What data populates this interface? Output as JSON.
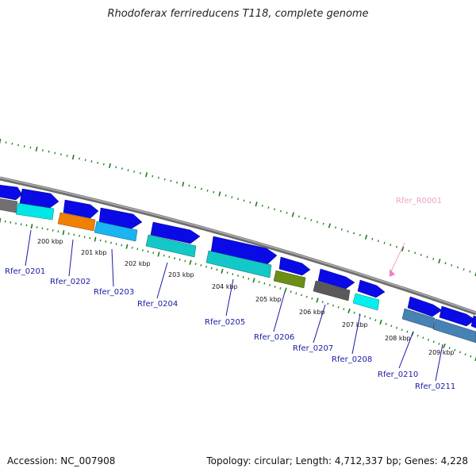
{
  "title": "Rhodoferax ferrireducens T118, complete genome",
  "footer": {
    "accession": "Accession: NC_007908",
    "summary": "Topology: circular; Length: 4,712,337 bp; Genes: 4,228"
  },
  "scale_labels": [
    "200 kbp",
    "201 kbp",
    "202 kbp",
    "203 kbp",
    "204 kbp",
    "205 kbp",
    "206 kbp",
    "207 kbp",
    "208 kbp",
    "209 kbp"
  ],
  "gene_labels": [
    "Rfer_0201",
    "Rfer_0202",
    "Rfer_0203",
    "Rfer_0204",
    "Rfer_0205",
    "Rfer_0206",
    "Rfer_0207",
    "Rfer_0208",
    "Rfer_0210",
    "Rfer_0211"
  ],
  "rna_label": "Rfer_R0001",
  "colors": {
    "backbone": "#8a8a8a",
    "tick": "#1e7d1e",
    "gene_label": "#1a1aa6",
    "rna_label": "#f0a0c8",
    "cds_forward": "#0a0ae6"
  }
}
